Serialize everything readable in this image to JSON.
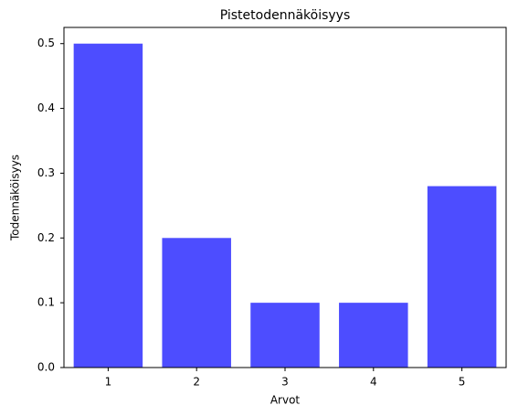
{
  "chart_data": {
    "type": "bar",
    "title": "Pistetodennäköisyys",
    "x_label": "Arvot",
    "y_label": "Todennäköisyys",
    "categories": [
      "1",
      "2",
      "3",
      "4",
      "5"
    ],
    "values": [
      0.5,
      0.2,
      0.1,
      0.1,
      0.28
    ],
    "color": "#4d4dff",
    "ylim": [
      0,
      0.525
    ],
    "yticks": [
      {
        "value": 0,
        "label": "0.0"
      },
      0.1,
      0.2,
      0.3,
      0.4,
      0.5
    ],
    "grid": false
  }
}
